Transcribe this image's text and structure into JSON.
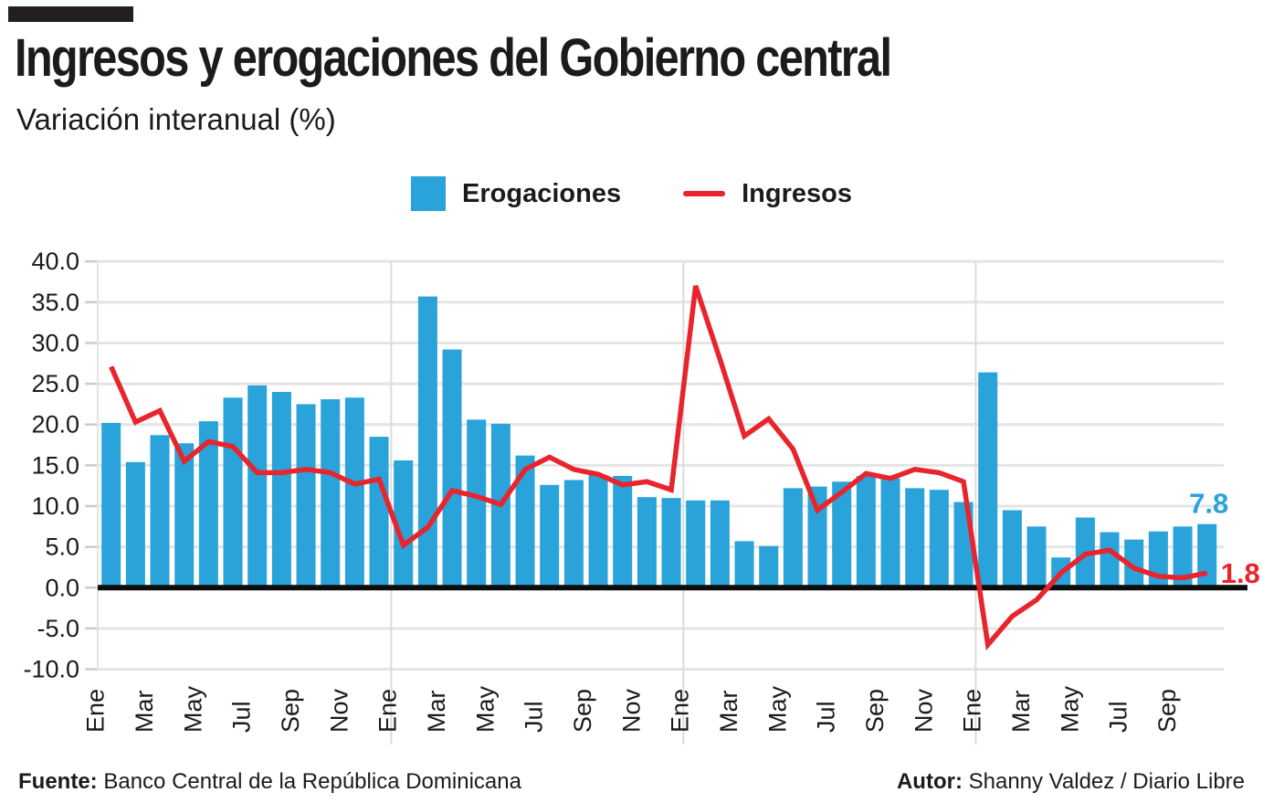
{
  "header": {
    "title": "Ingresos y erogaciones del Gobierno central",
    "subtitle": "Variación interanual (%)"
  },
  "legend": [
    {
      "label": "Erogaciones",
      "type": "bar",
      "color": "#29a3da"
    },
    {
      "label": "Ingresos",
      "type": "line",
      "color": "#e8242c"
    }
  ],
  "footer": {
    "source_label": "Fuente:",
    "source": "Banco Central de la República Dominicana",
    "author_label": "Autor:",
    "author": "Shanny Valdez / Diario Libre"
  },
  "chart_data": {
    "type": "combo",
    "title": "Ingresos y erogaciones del Gobierno central",
    "subtitle": "Variación interanual (%)",
    "categories": [
      "Ene",
      "Feb",
      "Mar",
      "Abr",
      "May",
      "Jun",
      "Jul",
      "Ago",
      "Sep",
      "Oct",
      "Nov",
      "Dic",
      "Ene",
      "Feb",
      "Mar",
      "Abr",
      "May",
      "Jun",
      "Jul",
      "Ago",
      "Sep",
      "Oct",
      "Nov",
      "Dic",
      "Ene",
      "Feb",
      "Mar",
      "Abr",
      "May",
      "Jun",
      "Jul",
      "Ago",
      "Sep",
      "Oct",
      "Nov",
      "Dic",
      "Ene",
      "Feb",
      "Mar",
      "Abr",
      "May",
      "Jun",
      "Jul",
      "Ago",
      "Sep",
      "Oct"
    ],
    "xtick_indices": [
      0,
      2,
      4,
      6,
      8,
      10,
      12,
      14,
      16,
      18,
      20,
      22,
      24,
      26,
      28,
      30,
      32,
      34,
      36,
      38,
      40,
      42,
      44
    ],
    "year_separators_after_index": [
      11,
      23,
      35
    ],
    "ylim": [
      -10,
      40
    ],
    "ytick_labels": [
      "40.0",
      "35.0",
      "30.0",
      "25.0",
      "20.0",
      "15.0",
      "10.0",
      "5.0",
      "0.0",
      "-5.0",
      "-10.0"
    ],
    "grid": true,
    "legend_position": "top",
    "series": [
      {
        "name": "Erogaciones",
        "type": "bar",
        "color": "#29a3da",
        "values": [
          20.2,
          15.4,
          18.7,
          17.7,
          20.4,
          23.3,
          24.8,
          24.0,
          22.5,
          23.1,
          23.3,
          18.5,
          15.6,
          35.7,
          29.2,
          20.6,
          20.1,
          16.2,
          12.6,
          13.2,
          13.8,
          13.7,
          11.1,
          11.0,
          10.7,
          10.7,
          5.7,
          5.1,
          12.2,
          12.4,
          13.0,
          13.7,
          13.4,
          12.2,
          12.0,
          10.5,
          26.4,
          9.5,
          7.5,
          3.7,
          8.6,
          6.8,
          5.9,
          6.9,
          7.5,
          7.8
        ]
      },
      {
        "name": "Ingresos",
        "type": "line",
        "color": "#e8242c",
        "values": [
          27.1,
          20.3,
          21.7,
          15.5,
          17.9,
          17.3,
          14.1,
          14.1,
          14.5,
          14.1,
          12.7,
          13.3,
          5.2,
          7.4,
          11.9,
          11.2,
          10.2,
          14.5,
          16.0,
          14.5,
          13.9,
          12.6,
          13.0,
          12.0,
          37.0,
          28.0,
          18.6,
          20.7,
          17.0,
          9.5,
          11.7,
          14.0,
          13.4,
          14.5,
          14.1,
          13.0,
          -7.0,
          -3.5,
          -1.5,
          1.8,
          4.1,
          4.6,
          2.4,
          1.4,
          1.2,
          1.8
        ]
      }
    ],
    "end_labels": [
      {
        "text": "7.8",
        "series": "Erogaciones",
        "color": "#29a3da"
      },
      {
        "text": "1.8",
        "series": "Ingresos",
        "color": "#e8242c"
      }
    ]
  }
}
